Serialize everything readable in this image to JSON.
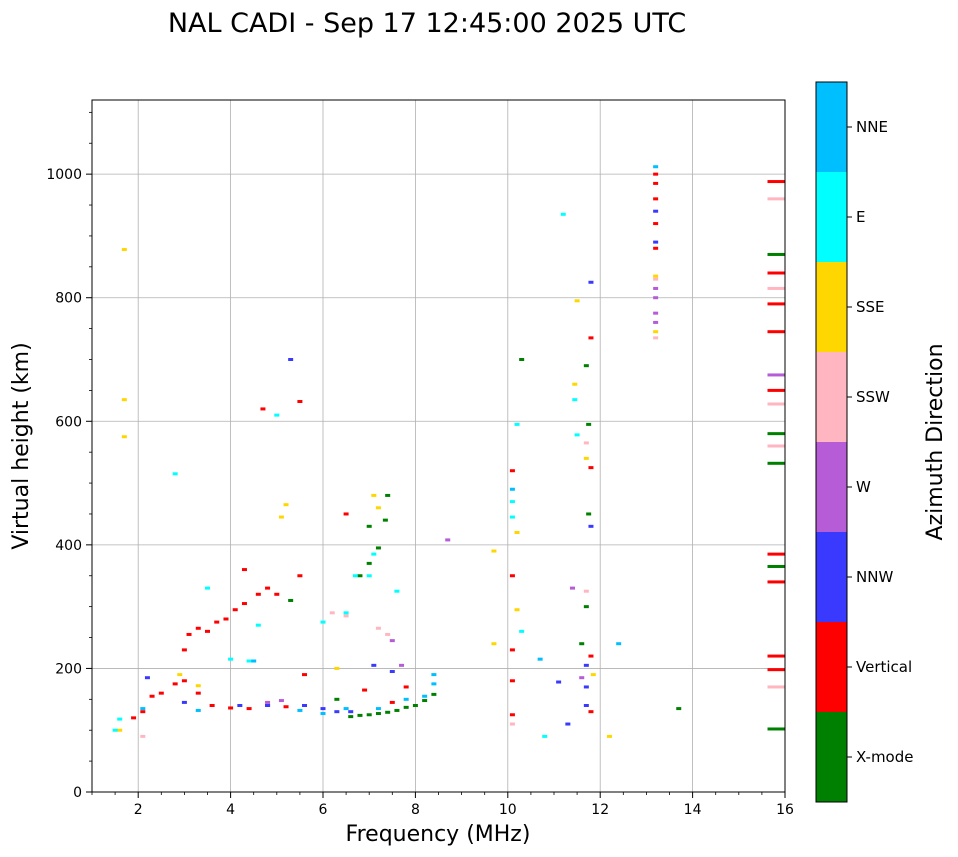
{
  "chart_data": {
    "type": "scatter",
    "title": "NAL CADI - Sep 17 12:45:00 2025 UTC",
    "xlabel": "Frequency (MHz)",
    "ylabel": "Virtual height (km)",
    "xlim": [
      1,
      16
    ],
    "ylim": [
      0,
      1120
    ],
    "xticks": [
      2,
      4,
      6,
      8,
      10,
      12,
      14,
      16
    ],
    "yticks": [
      0,
      200,
      400,
      600,
      800,
      1000
    ],
    "grid": true,
    "colorbar": {
      "label": "Azimuth Direction",
      "categories": [
        {
          "name": "X-mode",
          "color": "#008000"
        },
        {
          "name": "Vertical",
          "color": "#ff0000"
        },
        {
          "name": "NNW",
          "color": "#3a3aff"
        },
        {
          "name": "W",
          "color": "#b55cd6"
        },
        {
          "name": "SSW",
          "color": "#ffb6c1"
        },
        {
          "name": "SSE",
          "color": "#ffd700"
        },
        {
          "name": "E",
          "color": "#00ffff"
        },
        {
          "name": "NNE",
          "color": "#00bfff"
        }
      ]
    },
    "series": [
      {
        "name": "X-mode",
        "points": [
          [
            6.6,
            122
          ],
          [
            6.8,
            124
          ],
          [
            7.0,
            125
          ],
          [
            7.2,
            127
          ],
          [
            7.4,
            129
          ],
          [
            7.6,
            132
          ],
          [
            7.8,
            137
          ],
          [
            8.0,
            140
          ],
          [
            8.2,
            148
          ],
          [
            8.4,
            158
          ],
          [
            6.3,
            150
          ],
          [
            6.8,
            350
          ],
          [
            7.0,
            370
          ],
          [
            7.2,
            395
          ],
          [
            7.35,
            440
          ],
          [
            7.4,
            480
          ],
          [
            7.0,
            430
          ],
          [
            13.7,
            135
          ],
          [
            10.3,
            700
          ],
          [
            11.6,
            240
          ],
          [
            11.7,
            300
          ],
          [
            11.75,
            450
          ],
          [
            11.75,
            595
          ],
          [
            11.7,
            690
          ],
          [
            15.8,
            102
          ],
          [
            15.8,
            532
          ],
          [
            15.8,
            580
          ],
          [
            15.8,
            870
          ],
          [
            15.8,
            365
          ],
          [
            5.3,
            310
          ]
        ]
      },
      {
        "name": "Vertical",
        "points": [
          [
            1.9,
            120
          ],
          [
            2.1,
            130
          ],
          [
            2.3,
            155
          ],
          [
            2.5,
            160
          ],
          [
            2.8,
            175
          ],
          [
            3.0,
            180
          ],
          [
            3.3,
            160
          ],
          [
            3.6,
            140
          ],
          [
            4.0,
            136
          ],
          [
            4.4,
            135
          ],
          [
            4.8,
            140
          ],
          [
            5.2,
            138
          ],
          [
            3.0,
            230
          ],
          [
            3.1,
            255
          ],
          [
            3.3,
            265
          ],
          [
            3.5,
            260
          ],
          [
            3.7,
            275
          ],
          [
            3.9,
            280
          ],
          [
            4.1,
            295
          ],
          [
            4.3,
            305
          ],
          [
            4.6,
            320
          ],
          [
            4.8,
            330
          ],
          [
            5.0,
            320
          ],
          [
            5.5,
            350
          ],
          [
            6.5,
            450
          ],
          [
            6.9,
            165
          ],
          [
            7.5,
            145
          ],
          [
            7.8,
            170
          ],
          [
            10.1,
            125
          ],
          [
            10.1,
            180
          ],
          [
            10.1,
            230
          ],
          [
            10.1,
            350
          ],
          [
            10.1,
            520
          ],
          [
            11.8,
            130
          ],
          [
            11.8,
            220
          ],
          [
            11.8,
            525
          ],
          [
            11.8,
            735
          ],
          [
            13.2,
            880
          ],
          [
            13.2,
            920
          ],
          [
            13.2,
            960
          ],
          [
            13.2,
            985
          ],
          [
            13.2,
            1000
          ],
          [
            15.8,
            198
          ],
          [
            15.8,
            220
          ],
          [
            15.8,
            340
          ],
          [
            15.8,
            385
          ],
          [
            15.8,
            650
          ],
          [
            15.8,
            745
          ],
          [
            15.8,
            790
          ],
          [
            15.8,
            840
          ],
          [
            15.8,
            988
          ],
          [
            4.7,
            620
          ],
          [
            5.5,
            632
          ],
          [
            4.3,
            360
          ],
          [
            5.6,
            190
          ]
        ]
      },
      {
        "name": "NNW",
        "points": [
          [
            2.2,
            185
          ],
          [
            3.0,
            145
          ],
          [
            4.2,
            140
          ],
          [
            4.8,
            140
          ],
          [
            5.6,
            140
          ],
          [
            6.0,
            135
          ],
          [
            6.3,
            130
          ],
          [
            6.6,
            130
          ],
          [
            7.1,
            205
          ],
          [
            7.5,
            195
          ],
          [
            11.1,
            178
          ],
          [
            11.3,
            110
          ],
          [
            11.7,
            140
          ],
          [
            11.7,
            170
          ],
          [
            11.7,
            205
          ],
          [
            11.8,
            430
          ],
          [
            11.8,
            825
          ],
          [
            13.2,
            890
          ],
          [
            13.2,
            940
          ],
          [
            5.3,
            700
          ]
        ]
      },
      {
        "name": "W",
        "points": [
          [
            4.8,
            145
          ],
          [
            5.1,
            148
          ],
          [
            7.5,
            245
          ],
          [
            7.7,
            205
          ],
          [
            8.7,
            408
          ],
          [
            11.4,
            330
          ],
          [
            11.6,
            185
          ],
          [
            13.2,
            760
          ],
          [
            13.2,
            775
          ],
          [
            13.2,
            800
          ],
          [
            13.2,
            815
          ],
          [
            15.8,
            675
          ]
        ]
      },
      {
        "name": "SSW",
        "points": [
          [
            6.2,
            290
          ],
          [
            6.5,
            285
          ],
          [
            7.2,
            265
          ],
          [
            7.4,
            255
          ],
          [
            10.1,
            110
          ],
          [
            11.7,
            325
          ],
          [
            11.7,
            565
          ],
          [
            13.2,
            735
          ],
          [
            13.2,
            830
          ],
          [
            15.8,
            170
          ],
          [
            15.8,
            560
          ],
          [
            15.8,
            628
          ],
          [
            15.8,
            815
          ],
          [
            15.8,
            960
          ],
          [
            2.1,
            90
          ]
        ]
      },
      {
        "name": "SSE",
        "points": [
          [
            1.7,
            878
          ],
          [
            1.7,
            635
          ],
          [
            1.7,
            575
          ],
          [
            1.6,
            100
          ],
          [
            2.9,
            190
          ],
          [
            3.3,
            172
          ],
          [
            5.2,
            465
          ],
          [
            5.1,
            445
          ],
          [
            6.3,
            200
          ],
          [
            7.1,
            480
          ],
          [
            7.2,
            460
          ],
          [
            10.2,
            295
          ],
          [
            10.2,
            420
          ],
          [
            11.45,
            660
          ],
          [
            11.5,
            795
          ],
          [
            11.7,
            540
          ],
          [
            11.85,
            190
          ],
          [
            12.2,
            90
          ],
          [
            13.2,
            745
          ],
          [
            13.2,
            835
          ],
          [
            9.7,
            390
          ],
          [
            9.7,
            240
          ]
        ]
      },
      {
        "name": "E",
        "points": [
          [
            1.5,
            100
          ],
          [
            1.6,
            118
          ],
          [
            4.0,
            215
          ],
          [
            4.4,
            212
          ],
          [
            6.0,
            275
          ],
          [
            6.5,
            290
          ],
          [
            6.7,
            350
          ],
          [
            7.0,
            350
          ],
          [
            7.1,
            385
          ],
          [
            7.6,
            325
          ],
          [
            10.1,
            445
          ],
          [
            10.1,
            470
          ],
          [
            10.2,
            595
          ],
          [
            10.3,
            260
          ],
          [
            10.8,
            90
          ],
          [
            11.2,
            935
          ],
          [
            11.45,
            635
          ],
          [
            11.5,
            578
          ],
          [
            4.6,
            270
          ],
          [
            3.5,
            330
          ],
          [
            2.8,
            515
          ],
          [
            5.0,
            610
          ]
        ]
      },
      {
        "name": "NNE",
        "points": [
          [
            2.1,
            135
          ],
          [
            3.3,
            132
          ],
          [
            5.5,
            132
          ],
          [
            6.0,
            127
          ],
          [
            6.5,
            135
          ],
          [
            7.2,
            135
          ],
          [
            7.8,
            150
          ],
          [
            8.2,
            155
          ],
          [
            8.4,
            175
          ],
          [
            8.4,
            190
          ],
          [
            10.1,
            490
          ],
          [
            10.7,
            215
          ],
          [
            12.4,
            240
          ],
          [
            13.2,
            1012
          ],
          [
            4.5,
            212
          ]
        ]
      }
    ]
  }
}
